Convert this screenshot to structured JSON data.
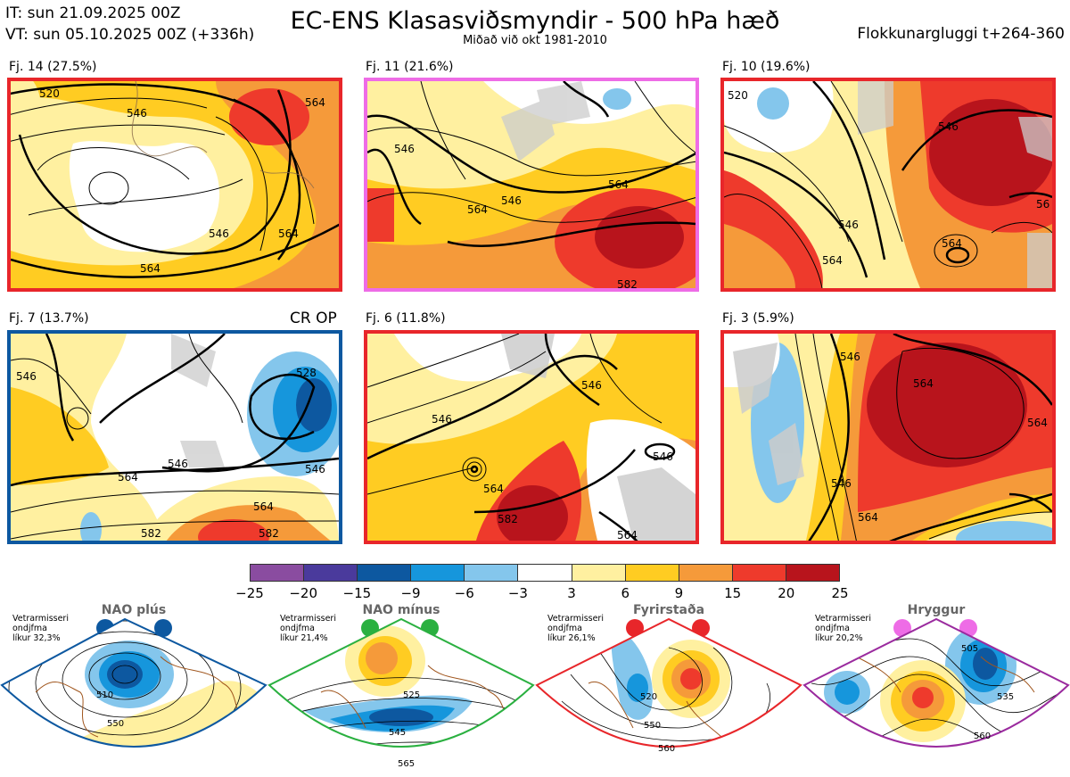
{
  "header": {
    "init_time": "IT: sun 21.09.2025 00Z",
    "valid_time": "VT: sun 05.10.2025 00Z  (+336h)",
    "title": "EC-ENS Klasasviðsmyndir - 500 hPa hæð",
    "subtitle": "Miðað við okt 1981-2010",
    "window": "Flokkunargluggi t+264-360"
  },
  "panels": [
    {
      "label": "Fj. 14 (27.5%)",
      "border_color": "#e8262a",
      "contours": [
        "520",
        "546",
        "564",
        "546",
        "564",
        "564"
      ]
    },
    {
      "label": "Fj. 11 (21.6%)",
      "border_color": "#ee6ce6",
      "contours": [
        "546",
        "546",
        "564",
        "564",
        "582"
      ]
    },
    {
      "label": "Fj. 10 (19.6%)",
      "border_color": "#e8262a",
      "contours": [
        "520",
        "546",
        "546",
        "564",
        "564",
        "56"
      ]
    },
    {
      "label": "Fj. 7 (13.7%)",
      "border_color": "#0d58a0",
      "extra": "CR OP",
      "contours": [
        "546",
        "528",
        "546",
        "546",
        "564",
        "564",
        "582",
        "582"
      ]
    },
    {
      "label": "Fj. 6 (11.8%)",
      "border_color": "#e8262a",
      "contours": [
        "546",
        "546",
        "546",
        "564",
        "582",
        "564"
      ]
    },
    {
      "label": "Fj. 3 (5.9%)",
      "border_color": "#e8262a",
      "contours": [
        "546",
        "564",
        "546",
        "564",
        "564"
      ]
    }
  ],
  "colorbar": {
    "ticks": [
      "−25",
      "−20",
      "−15",
      "−9",
      "−6",
      "−3",
      "3",
      "6",
      "9",
      "15",
      "20",
      "25"
    ],
    "colors": [
      "#8a4ca0",
      "#4a3a9c",
      "#0d58a0",
      "#1696dc",
      "#84c6ec",
      "#ffffff",
      "#fff0a0",
      "#ffcc22",
      "#f59a3a",
      "#ee3a2c",
      "#b8141c"
    ]
  },
  "regimes": [
    {
      "name": "NAO plús",
      "note_line1": "Vetrarmisseri",
      "note_line2": "ondjfma",
      "note_line3": "líkur 32,3%",
      "color": "#0d58a0",
      "contours": [
        "510",
        "550"
      ]
    },
    {
      "name": "NAO mínus",
      "note_line1": "Vetrarmisseri",
      "note_line2": "ondjfma",
      "note_line3": "líkur 21,4%",
      "color": "#2ab040",
      "contours": [
        "525",
        "545",
        "565"
      ]
    },
    {
      "name": "Fyrirstaða",
      "note_line1": "Vetrarmisseri",
      "note_line2": "ondjfma",
      "note_line3": "líkur 26,1%",
      "color": "#e8262a",
      "contours": [
        "520",
        "550",
        "560"
      ]
    },
    {
      "name": "Hryggur",
      "note_line1": "Vetrarmisseri",
      "note_line2": "ondjfma",
      "note_line3": "líkur 20,2%",
      "color": "#ee6ce6",
      "contours": [
        "505",
        "535",
        "560"
      ]
    }
  ]
}
